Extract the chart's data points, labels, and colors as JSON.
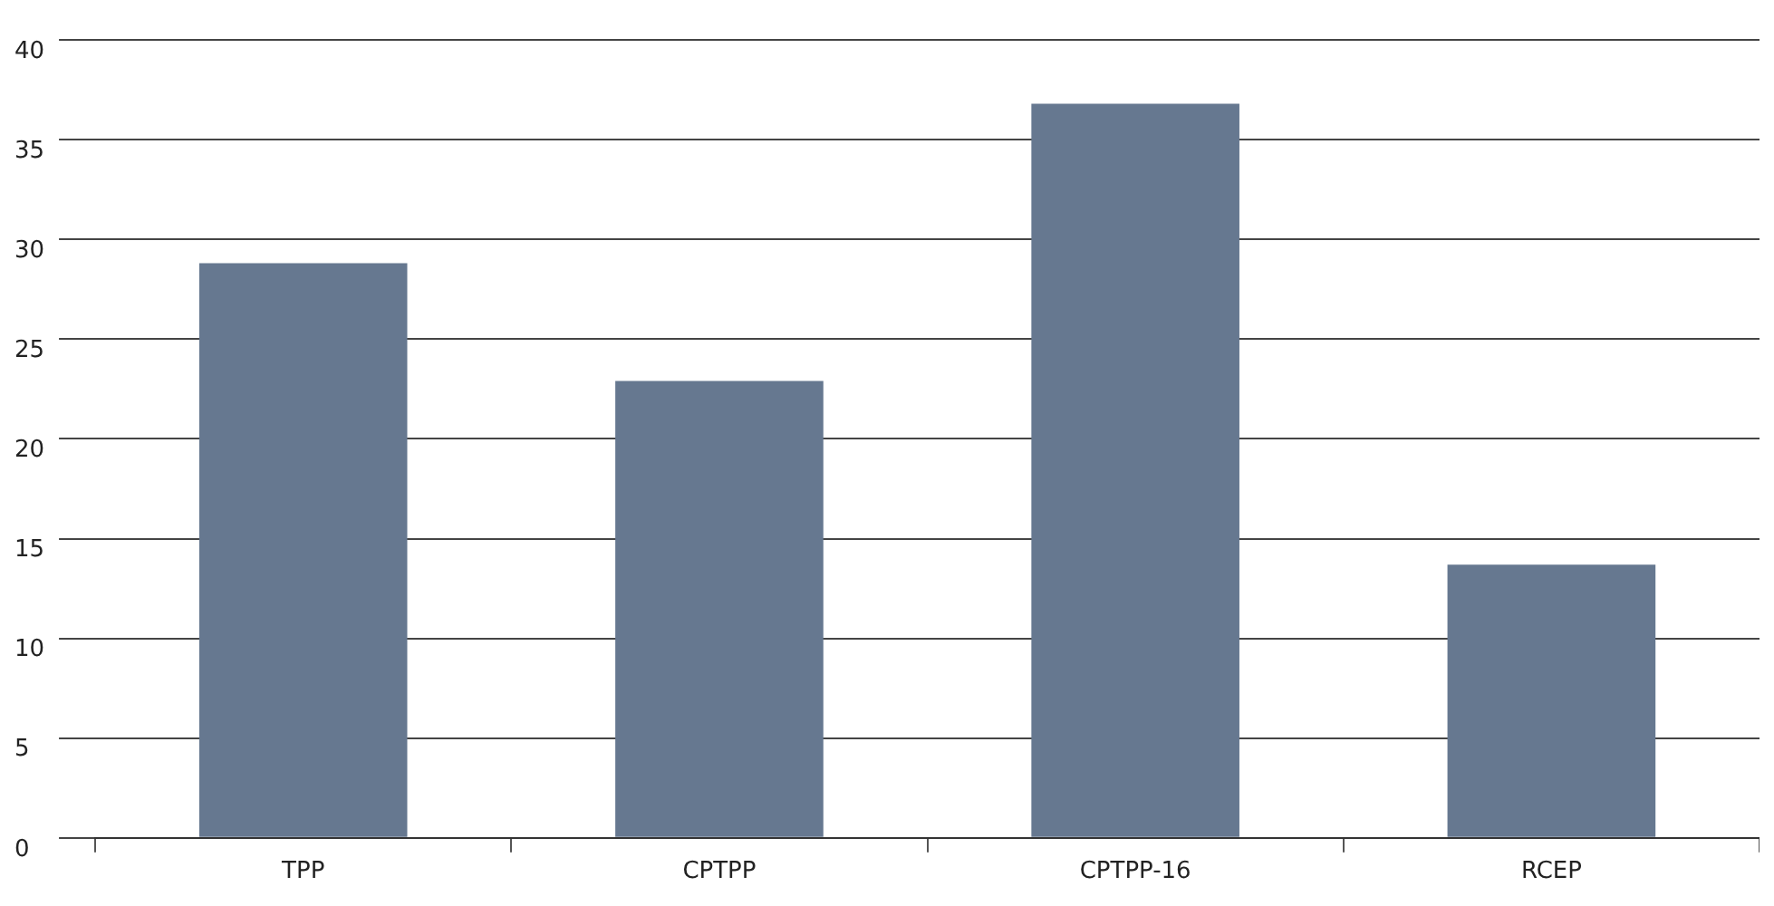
{
  "chart_data": {
    "type": "bar",
    "categories": [
      "TPP",
      "CPTPP",
      "CPTPP-16",
      "RCEP"
    ],
    "values": [
      28.8,
      22.9,
      36.8,
      13.7
    ],
    "color": "#667890",
    "ylim": [
      0,
      40
    ],
    "yticks": [
      0,
      5,
      10,
      15,
      20,
      25,
      30,
      35,
      40
    ],
    "grid": "y",
    "legend": false
  }
}
